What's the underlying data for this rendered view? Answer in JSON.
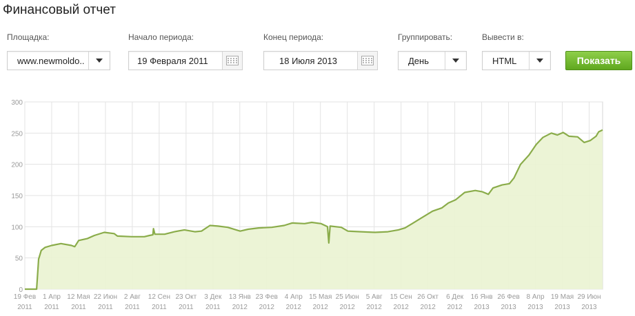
{
  "page": {
    "title": "Финансовый отчет"
  },
  "filters": {
    "site": {
      "label": "Площадка:",
      "value": "www.newmoldo.."
    },
    "start": {
      "label": "Начало периода:",
      "value": "19 Февраля 2011"
    },
    "end": {
      "label": "Конец периода:",
      "value": "18 Июля 2013"
    },
    "group": {
      "label": "Группировать:",
      "value": "День"
    },
    "output": {
      "label": "Вывести в:",
      "value": "HTML"
    },
    "show_label": "Показать"
  },
  "colors": {
    "accent": "#6fb52c",
    "line": "#8aac4a",
    "fill": "#eaf3d2",
    "grid": "#e3e3e3"
  },
  "icons": {
    "calendar": "calendar-icon",
    "dropdown": "chevron-down-icon"
  },
  "chart_data": {
    "type": "area",
    "ylim": [
      0,
      300
    ],
    "yticks": [
      "0",
      "50",
      "100",
      "150",
      "200",
      "250",
      "300"
    ],
    "xticks": [
      [
        "19 Фев",
        "2011"
      ],
      [
        "1 Апр",
        "2011"
      ],
      [
        "12 Мая",
        "2011"
      ],
      [
        "22 Июн",
        "2011"
      ],
      [
        "2 Авг",
        "2011"
      ],
      [
        "12 Сен",
        "2011"
      ],
      [
        "23 Окт",
        "2011"
      ],
      [
        "3 Дек",
        "2011"
      ],
      [
        "13 Янв",
        "2012"
      ],
      [
        "23 Фев",
        "2012"
      ],
      [
        "4 Апр",
        "2012"
      ],
      [
        "15 Мая",
        "2012"
      ],
      [
        "25 Июн",
        "2012"
      ],
      [
        "5 Авг",
        "2012"
      ],
      [
        "15 Сен",
        "2012"
      ],
      [
        "26 Окт",
        "2012"
      ],
      [
        "6 Дек",
        "2012"
      ],
      [
        "16 Янв",
        "2013"
      ],
      [
        "26 Фев",
        "2013"
      ],
      [
        "8 Апр",
        "2013"
      ],
      [
        "19 Мая",
        "2013"
      ],
      [
        "29 Июн",
        "2013"
      ]
    ],
    "x_start": "2011-02-19",
    "x_end": "2013-07-18",
    "points": [
      [
        "2011-02-19",
        0
      ],
      [
        "2011-03-05",
        0
      ],
      [
        "2011-03-09",
        0
      ],
      [
        "2011-03-12",
        48
      ],
      [
        "2011-03-16",
        62
      ],
      [
        "2011-03-22",
        67
      ],
      [
        "2011-04-01",
        70
      ],
      [
        "2011-04-15",
        73
      ],
      [
        "2011-05-01",
        70
      ],
      [
        "2011-05-06",
        68
      ],
      [
        "2011-05-12",
        78
      ],
      [
        "2011-05-25",
        81
      ],
      [
        "2011-06-05",
        86
      ],
      [
        "2011-06-20",
        91
      ],
      [
        "2011-07-05",
        89
      ],
      [
        "2011-07-10",
        85
      ],
      [
        "2011-08-01",
        84
      ],
      [
        "2011-08-20",
        84
      ],
      [
        "2011-08-28",
        86
      ],
      [
        "2011-09-02",
        87
      ],
      [
        "2011-09-03",
        97
      ],
      [
        "2011-09-05",
        88
      ],
      [
        "2011-09-20",
        88
      ],
      [
        "2011-10-05",
        92
      ],
      [
        "2011-10-20",
        95
      ],
      [
        "2011-11-05",
        92
      ],
      [
        "2011-11-15",
        93
      ],
      [
        "2011-11-28",
        102
      ],
      [
        "2011-12-10",
        101
      ],
      [
        "2011-12-25",
        99
      ],
      [
        "2012-01-13",
        93
      ],
      [
        "2012-01-25",
        96
      ],
      [
        "2012-02-10",
        98
      ],
      [
        "2012-03-01",
        99
      ],
      [
        "2012-03-20",
        102
      ],
      [
        "2012-04-01",
        106
      ],
      [
        "2012-04-20",
        105
      ],
      [
        "2012-05-01",
        107
      ],
      [
        "2012-05-15",
        105
      ],
      [
        "2012-05-25",
        100
      ],
      [
        "2012-05-27",
        74
      ],
      [
        "2012-05-29",
        101
      ],
      [
        "2012-06-15",
        99
      ],
      [
        "2012-06-25",
        93
      ],
      [
        "2012-07-15",
        92
      ],
      [
        "2012-08-05",
        91
      ],
      [
        "2012-08-25",
        92
      ],
      [
        "2012-09-10",
        95
      ],
      [
        "2012-09-20",
        98
      ],
      [
        "2012-10-01",
        105
      ],
      [
        "2012-10-15",
        114
      ],
      [
        "2012-11-01",
        125
      ],
      [
        "2012-11-15",
        130
      ],
      [
        "2012-11-25",
        138
      ],
      [
        "2012-12-06",
        143
      ],
      [
        "2012-12-20",
        155
      ],
      [
        "2013-01-05",
        158
      ],
      [
        "2013-01-16",
        156
      ],
      [
        "2013-01-25",
        152
      ],
      [
        "2013-02-01",
        162
      ],
      [
        "2013-02-15",
        167
      ],
      [
        "2013-02-26",
        169
      ],
      [
        "2013-03-05",
        178
      ],
      [
        "2013-03-15",
        200
      ],
      [
        "2013-03-28",
        215
      ],
      [
        "2013-04-08",
        232
      ],
      [
        "2013-04-18",
        243
      ],
      [
        "2013-05-01",
        250
      ],
      [
        "2013-05-10",
        247
      ],
      [
        "2013-05-19",
        251
      ],
      [
        "2013-05-28",
        245
      ],
      [
        "2013-06-10",
        244
      ],
      [
        "2013-06-20",
        235
      ],
      [
        "2013-06-29",
        238
      ],
      [
        "2013-07-08",
        245
      ],
      [
        "2013-07-12",
        252
      ],
      [
        "2013-07-18",
        255
      ]
    ]
  }
}
